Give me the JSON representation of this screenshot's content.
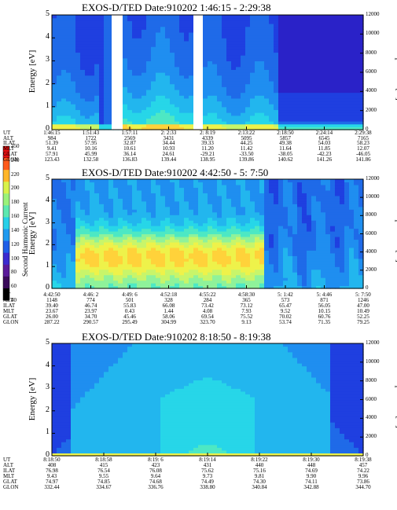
{
  "colorbar": {
    "label": "Second Harmonic Current",
    "ticks": [
      "40",
      "60",
      "80",
      "100",
      "120",
      "140",
      "160",
      "180",
      "200",
      "220",
      "240",
      "250"
    ]
  },
  "chart_data": [
    {
      "type": "heatmap",
      "title": "EXOS-D/TED   Date:910202   1:46:15 - 2:29:38",
      "ylabel": "Energy [eV]",
      "y2label": "Temperature [K]",
      "ylim": [
        0,
        5
      ],
      "y2lim": [
        0,
        12000
      ],
      "yticks": [
        "0",
        "1",
        "2",
        "3",
        "4",
        "5"
      ],
      "y2ticks": [
        "0",
        "2000",
        "4000",
        "6000",
        "8000",
        "10000",
        "12000"
      ],
      "ephemeris": {
        "names": [
          "UT",
          "ALT",
          "ILAT",
          "MLT",
          "GLAT",
          "GLON"
        ],
        "columns": [
          [
            "1:46:15",
            "984",
            "51.39",
            "9.41",
            "57.91",
            "123.43"
          ],
          [
            "1:51:43",
            "1722",
            "57.95",
            "10.16",
            "45.99",
            "132.58"
          ],
          [
            "1:57:11",
            "2569",
            "32.87",
            "10.61",
            "36.14",
            "136.83"
          ],
          [
            "2: 2:33",
            "3431",
            "34.44",
            "10.93",
            "24.61",
            "139.44"
          ],
          [
            "2: 8:19",
            "4339",
            "39.33",
            "11.20",
            "-29.21",
            "138.95"
          ],
          [
            "2:13:22",
            "5095",
            "44.25",
            "11.42",
            "-33.50",
            "139.86"
          ],
          [
            "2:18:50",
            "5857",
            "49.38",
            "11.64",
            "-38.05",
            "140.62"
          ],
          [
            "2:24:14",
            "6545",
            "54.03",
            "11.85",
            "-42.23",
            "141.26"
          ],
          [
            "2:29:38",
            "7165",
            "58.23",
            "12.07",
            "-46.05",
            "141.86"
          ]
        ]
      }
    },
    {
      "type": "heatmap",
      "title": "EXOS-D/TED   Date:910202   4:42:50 - 5: 7:50",
      "ylabel": "Energy [eV]",
      "y2label": "Temperature [K]",
      "ylim": [
        0,
        5
      ],
      "y2lim": [
        0,
        12000
      ],
      "yticks": [
        "0",
        "1",
        "2",
        "3",
        "4",
        "5"
      ],
      "y2ticks": [
        "0",
        "2000",
        "4000",
        "6000",
        "8000",
        "10000",
        "12000"
      ],
      "ephemeris": {
        "names": [
          "UT",
          "ALT",
          "ILAT",
          "MLT",
          "GLAT",
          "GLON"
        ],
        "columns": [
          [
            "4:42:50",
            "1148",
            "39.40",
            "23.67",
            "26.00",
            "287.22"
          ],
          [
            "4:46: 2",
            "774",
            "46.74",
            "23.97",
            "34.70",
            "290.57"
          ],
          [
            "4:49: 6",
            "501",
            "55.83",
            "0.43",
            "45.46",
            "295.49"
          ],
          [
            "4:52:18",
            "328",
            "66.08",
            "1.44",
            "58.06",
            "304.99"
          ],
          [
            "4:55:22",
            "284",
            "73.42",
            "4.08",
            "69.54",
            "323.70"
          ],
          [
            "4:58:30",
            "365",
            "73.12",
            "7.93",
            "75.52",
            "9.13"
          ],
          [
            "5: 1:42",
            "573",
            "65.47",
            "9.52",
            "70.02",
            "53.74"
          ],
          [
            "5: 4:46",
            "871",
            "56.05",
            "10.15",
            "60.76",
            "71.35"
          ],
          [
            "5: 7:50",
            "1246",
            "47.00",
            "10.49",
            "52.25",
            "79.25"
          ]
        ]
      }
    },
    {
      "type": "heatmap",
      "title": "EXOS-D/TED   Date:910202   8:18:50 - 8:19:38",
      "ylabel": "Energy [eV]",
      "y2label": "Temperature [K]",
      "ylim": [
        0,
        5
      ],
      "y2lim": [
        0,
        12000
      ],
      "yticks": [
        "0",
        "1",
        "2",
        "3",
        "4",
        "5"
      ],
      "y2ticks": [
        "0",
        "2000",
        "4000",
        "6000",
        "8000",
        "10000",
        "12000"
      ],
      "ephemeris": {
        "names": [
          "UT",
          "ALT",
          "ILAT",
          "MLT",
          "GLAT",
          "GLON"
        ],
        "columns": [
          [
            "8:18:50",
            "408",
            "76.98",
            "9.43",
            "74.97",
            "332.44"
          ],
          [
            "8:18:58",
            "415",
            "76.54",
            "9.55",
            "74.85",
            "334.67"
          ],
          [
            "8:19: 6",
            "423",
            "76.08",
            "9.64",
            "74.68",
            "336.76"
          ],
          [
            "8:19:14",
            "431",
            "75.62",
            "9.73",
            "74.49",
            "338.80"
          ],
          [
            "8:19:22",
            "440",
            "75.16",
            "9.81",
            "74.30",
            "340.84"
          ],
          [
            "8:19:30",
            "448",
            "74.69",
            "9.90",
            "74.11",
            "342.88"
          ],
          [
            "8:19:38",
            "457",
            "74.22",
            "9.96",
            "73.86",
            "344.70"
          ]
        ]
      }
    }
  ]
}
